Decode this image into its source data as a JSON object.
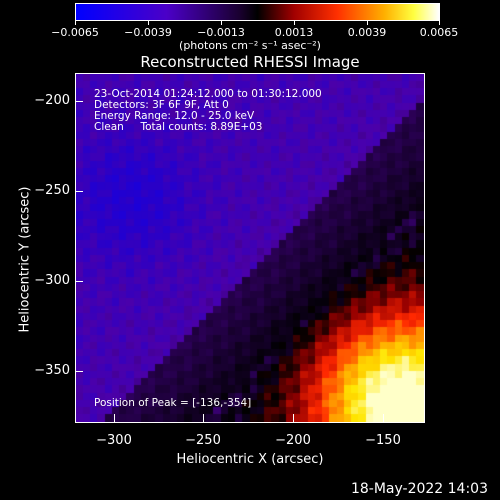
{
  "colorbar": {
    "ticks": [
      "−0.0065",
      "−0.0039",
      "−0.0013",
      "0.0013",
      "0.0039",
      "0.0065"
    ],
    "units": "(photons cm⁻² s⁻¹ asec⁻²)",
    "range": [
      -0.0065,
      0.0065
    ]
  },
  "title": "Reconstructed RHESSI Image",
  "info": {
    "line1": "23-Oct-2014 01:24:12.000 to 01:30:12.000",
    "line2": "Detectors: 3F 6F 9F, Att 0",
    "line3": "Energy Range: 12.0 - 25.0 keV",
    "line4": "Clean     Total counts: 8.89E+03",
    "peak": "Position of Peak = [-136,-354]"
  },
  "axes": {
    "xlabel": "Heliocentric X (arcsec)",
    "ylabel": "Heliocentric Y (arcsec)",
    "xticks": [
      "−300",
      "−250",
      "−200",
      "−150"
    ],
    "yticks": [
      "−200",
      "−250",
      "−300",
      "−350"
    ],
    "xlim": [
      -320,
      -125
    ],
    "ylim": [
      -378,
      -183
    ]
  },
  "timestamp": "18-May-2022 14:03",
  "chart_data": {
    "type": "heatmap",
    "title": "Reconstructed RHESSI Image",
    "xlabel": "Heliocentric X (arcsec)",
    "ylabel": "Heliocentric Y (arcsec)",
    "xlim": [
      -320,
      -125
    ],
    "ylim": [
      -378,
      -183
    ],
    "peak": [
      -136,
      -354
    ],
    "colormap": "blue-purple-black-red-yellow-white",
    "clim": [
      -0.0065,
      0.0065
    ]
  }
}
